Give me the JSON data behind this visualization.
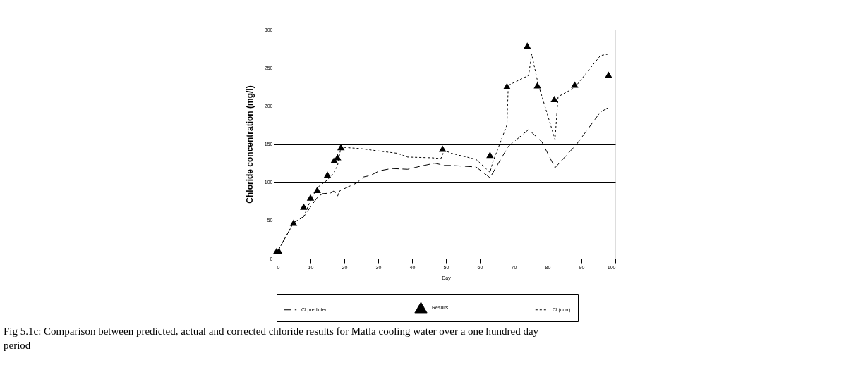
{
  "chart_data": {
    "type": "line",
    "xlabel": "Day",
    "ylabel": "Chloride concentration (mg/l)",
    "xlim": [
      0,
      100
    ],
    "ylim": [
      0,
      300
    ],
    "xticks": [
      0,
      10,
      20,
      30,
      40,
      50,
      60,
      70,
      80,
      90,
      100
    ],
    "yticks": [
      0,
      50,
      100,
      150,
      200,
      250,
      300
    ],
    "grid": "y",
    "legend": "bottom",
    "annotations": [
      "Fig 5.1c: Comparison between predicted, actual and corrected chloride results for Matla cooling water over a one hundred day period"
    ],
    "series": [
      {
        "name": "Cl predicted",
        "line_style": "dashed",
        "color": "#000000",
        "x": [
          0,
          5,
          8,
          12,
          13.5,
          16,
          17,
          18,
          18.7,
          23.6,
          25.7,
          27.8,
          30.3,
          34,
          38.7,
          42.5,
          46.7,
          49.5,
          51.5,
          58.9,
          63,
          68.4,
          74.4,
          78.3,
          82.2,
          88.6,
          95.6,
          98
        ],
        "values": [
          7,
          47,
          55,
          80,
          85,
          86,
          89,
          82,
          89,
          99,
          107,
          109,
          115,
          118,
          117,
          121,
          125,
          122,
          122,
          120,
          106,
          147,
          169,
          153,
          119,
          150,
          192,
          198
        ]
      },
      {
        "name": "Results",
        "type": "scatter",
        "marker": "triangle",
        "color": "#000000",
        "x": [
          0,
          0.7,
          5,
          8,
          10,
          12,
          15,
          17,
          18,
          19,
          49,
          63,
          68,
          74,
          77,
          82,
          88,
          98
        ],
        "values": [
          10,
          10,
          47,
          68,
          80,
          90,
          110,
          129,
          133,
          146,
          144,
          136,
          226,
          279,
          227,
          209,
          228,
          241
        ]
      },
      {
        "name": "Cl (corr)",
        "line_style": "dotted",
        "color": "#000000",
        "x": [
          0,
          5,
          8,
          10,
          12,
          15,
          17,
          18,
          19,
          25,
          30,
          35.6,
          38.7,
          46,
          48.5,
          49.5,
          51.5,
          58.9,
          63,
          63.8,
          68,
          68.4,
          74.4,
          75.3,
          77.2,
          82.2,
          83.1,
          88,
          95.6,
          98
        ],
        "values": [
          7,
          47,
          55,
          76,
          93,
          103,
          113,
          122,
          146,
          144,
          141,
          138,
          133,
          132,
          131,
          142,
          138,
          130,
          113,
          126,
          175,
          227,
          240,
          268,
          229,
          156,
          212,
          224,
          266,
          268
        ]
      }
    ]
  }
}
